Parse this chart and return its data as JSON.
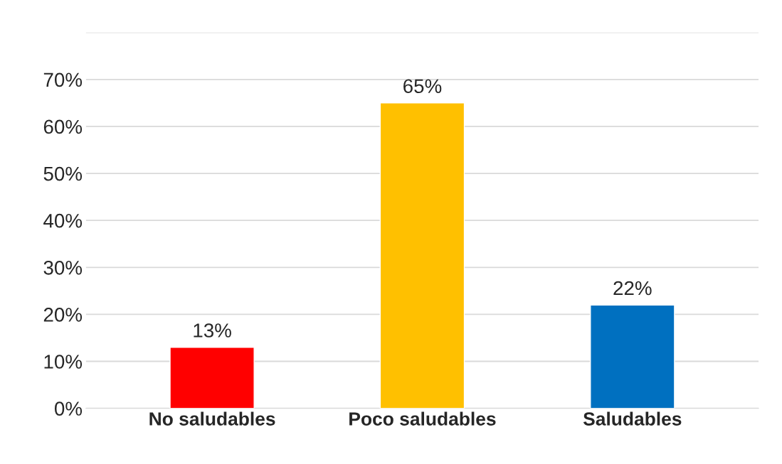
{
  "chart_data": {
    "type": "bar",
    "categories": [
      "No saludables",
      "Poco saludables",
      "Saludables"
    ],
    "values": [
      13,
      65,
      22
    ],
    "colors": [
      "#ff0000",
      "#ffc000",
      "#0070c0"
    ],
    "value_labels": [
      "13%",
      "65%",
      "22%"
    ],
    "ylim": [
      0,
      80
    ],
    "yticks": [
      {
        "value": 0,
        "label": "0%"
      },
      {
        "value": 10,
        "label": "10%"
      },
      {
        "value": 20,
        "label": "20%"
      },
      {
        "value": 30,
        "label": "30%"
      },
      {
        "value": 40,
        "label": "40%"
      },
      {
        "value": 50,
        "label": "50%"
      },
      {
        "value": 60,
        "label": "60%"
      },
      {
        "value": 70,
        "label": "70%"
      },
      {
        "value": 80,
        "label": null
      }
    ],
    "grid": "y",
    "legend": false
  }
}
